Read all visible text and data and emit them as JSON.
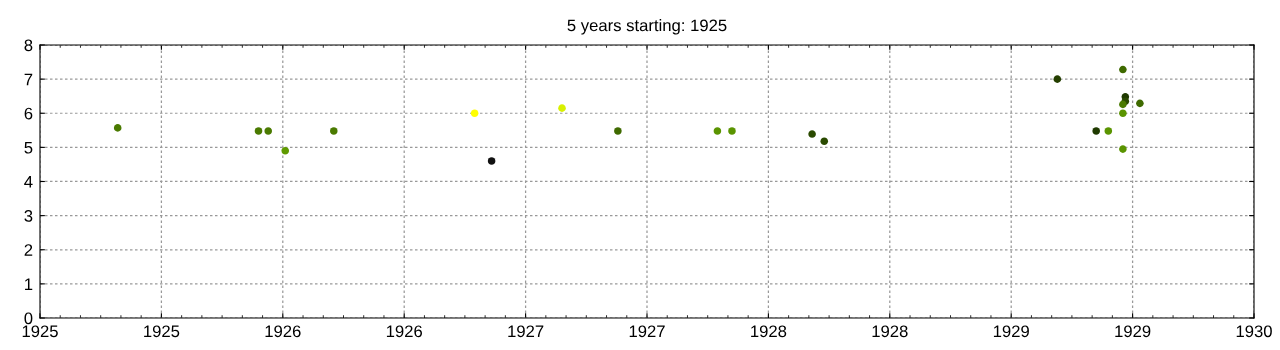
{
  "chart_data": {
    "type": "scatter",
    "title": "5 years starting: 1925",
    "x": [
      1925.32,
      1925.9,
      1925.94,
      1926.01,
      1926.21,
      1926.79,
      1926.86,
      1927.15,
      1927.38,
      1927.79,
      1927.85,
      1928.18,
      1928.23,
      1929.19,
      1929.35,
      1929.4,
      1929.46,
      1929.46,
      1929.46,
      1929.47,
      1929.47,
      1929.46,
      1929.53
    ],
    "values": [
      5.57,
      5.48,
      5.48,
      4.9,
      5.48,
      6.0,
      4.6,
      6.15,
      5.48,
      5.48,
      5.48,
      5.39,
      5.18,
      7.0,
      5.48,
      5.48,
      7.28,
      6.0,
      4.95,
      6.48,
      6.35,
      6.26,
      6.29
    ],
    "colors": [
      "#4a7a00",
      "#4a7a00",
      "#4a7a00",
      "#5f9a00",
      "#4a7a00",
      "#ffff00",
      "#111111",
      "#d8f000",
      "#3f6a00",
      "#5a9400",
      "#5a9400",
      "#2a4a00",
      "#2a4a00",
      "#243f00",
      "#1f3a00",
      "#5a9400",
      "#3f6a00",
      "#5a9400",
      "#5a9400",
      "#1f3a00",
      "#2a4a00",
      "#4a7a00",
      "#3f6a00"
    ],
    "marker": "circle",
    "grid": true,
    "xlim": [
      1925,
      1930
    ],
    "xticks": [
      {
        "value": 1925,
        "label": "1925"
      },
      {
        "value": 1925.5,
        "label": "1925"
      },
      {
        "value": 1926,
        "label": "1926"
      },
      {
        "value": 1926.5,
        "label": "1926"
      },
      {
        "value": 1927,
        "label": "1927"
      },
      {
        "value": 1927.5,
        "label": "1927"
      },
      {
        "value": 1928,
        "label": "1928"
      },
      {
        "value": 1928.5,
        "label": "1928"
      },
      {
        "value": 1929,
        "label": "1929"
      },
      {
        "value": 1929.5,
        "label": "1929"
      },
      {
        "value": 1930,
        "label": "1930"
      }
    ],
    "ylim": [
      0,
      8
    ],
    "yticks": [
      0,
      1,
      2,
      3,
      4,
      5,
      6,
      7,
      8
    ]
  }
}
